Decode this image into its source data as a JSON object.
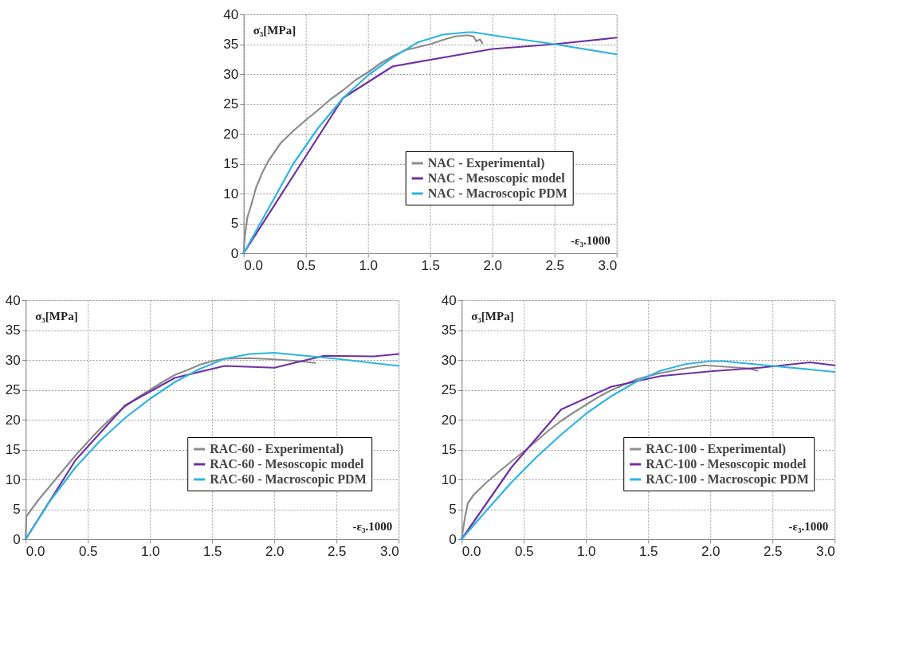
{
  "chart_data": [
    {
      "type": "line",
      "xlabel": "-ε₃.1000",
      "ylabel": "σ₃[MPa]",
      "xlim": [
        0,
        3
      ],
      "ylim": [
        0,
        40
      ],
      "xticks": [
        {
          "value": 0,
          "label": "0.0"
        },
        0.5,
        {
          "value": 1,
          "label": "1.0"
        },
        1.5,
        {
          "value": 2,
          "label": "2.0"
        },
        2.5,
        {
          "value": 3,
          "label": "3.0"
        }
      ],
      "yticks": [
        0,
        5,
        10,
        15,
        20,
        25,
        30,
        35,
        40
      ],
      "grid": true,
      "legend": "bottom right",
      "series": [
        {
          "name": "NAC - Experimental)",
          "color": "#8c8c8c",
          "x": [
            0,
            0.01,
            0.03,
            0.06,
            0.1,
            0.15,
            0.2,
            0.25,
            0.3,
            0.4,
            0.5,
            0.6,
            0.7,
            0.8,
            0.9,
            1.0,
            1.1,
            1.2,
            1.3,
            1.4,
            1.5,
            1.6,
            1.7,
            1.8,
            1.85,
            1.87,
            1.9,
            1.92
          ],
          "values": [
            0,
            3,
            6,
            8,
            11,
            13.5,
            15.5,
            17,
            18.5,
            20.5,
            22.3,
            24,
            25.8,
            27.3,
            29,
            30.3,
            31.8,
            33,
            34,
            34.5,
            35,
            35.7,
            36.3,
            36.5,
            36.3,
            35.5,
            35.8,
            35.2
          ]
        },
        {
          "name": "NAC - Mesoscopic model",
          "color": "#7030a0",
          "x": [
            0,
            0.4,
            0.8,
            1.2,
            2.0,
            2.5,
            3.0
          ],
          "values": [
            0,
            13,
            26,
            31.3,
            34.2,
            35,
            36.1
          ]
        },
        {
          "name": "NAC - Macroscopic PDM",
          "color": "#2eb4e0",
          "x": [
            0,
            0.2,
            0.4,
            0.6,
            0.8,
            1.0,
            1.2,
            1.4,
            1.6,
            1.8,
            1.85,
            2.0,
            2.5,
            3.0
          ],
          "values": [
            0,
            7.5,
            15,
            21,
            26,
            29.8,
            32.8,
            35.3,
            36.6,
            37,
            37,
            36.5,
            35,
            33.3
          ]
        }
      ]
    },
    {
      "type": "line",
      "xlabel": "-ε₃.1000",
      "ylabel": "σ₃[MPa]",
      "xlim": [
        0,
        3
      ],
      "ylim": [
        0,
        40
      ],
      "xticks": [
        {
          "value": 0,
          "label": "0.0"
        },
        0.5,
        {
          "value": 1,
          "label": "1.0"
        },
        1.5,
        {
          "value": 2,
          "label": "2.0"
        },
        2.5,
        {
          "value": 3,
          "label": "3.0"
        }
      ],
      "yticks": [
        0,
        5,
        10,
        15,
        20,
        25,
        30,
        35,
        40
      ],
      "grid": true,
      "legend": "bottom right",
      "series": [
        {
          "name": "RAC-60 - Experimental)",
          "color": "#8c8c8c",
          "x": [
            0,
            0.005,
            0.1,
            0.2,
            0.3,
            0.4,
            0.5,
            0.6,
            0.7,
            0.8,
            0.9,
            1.0,
            1.1,
            1.2,
            1.3,
            1.4,
            1.5,
            1.6,
            1.8,
            2.0,
            2.2,
            2.33
          ],
          "values": [
            0,
            3.8,
            6.5,
            9,
            11.5,
            14,
            16.3,
            18.5,
            20.5,
            22.2,
            23.7,
            25,
            26.3,
            27.5,
            28.3,
            29.2,
            29.8,
            30.2,
            30.3,
            30.1,
            29.8,
            29.5
          ]
        },
        {
          "name": "RAC-60 - Mesoscopic model",
          "color": "#7030a0",
          "x": [
            0,
            0.4,
            0.8,
            1.2,
            1.6,
            2.0,
            2.4,
            2.8,
            3.0
          ],
          "values": [
            0,
            13.2,
            22.4,
            27,
            29,
            28.7,
            30.7,
            30.6,
            31
          ]
        },
        {
          "name": "RAC-60 - Macroscopic PDM",
          "color": "#2eb4e0",
          "x": [
            0,
            0.2,
            0.4,
            0.6,
            0.8,
            1.0,
            1.2,
            1.4,
            1.6,
            1.8,
            2.0,
            2.2,
            2.5,
            3.0
          ],
          "values": [
            0,
            6.5,
            12,
            16.5,
            20.3,
            23.5,
            26.3,
            28.5,
            30.2,
            31,
            31.2,
            30.8,
            30.2,
            29
          ]
        }
      ]
    },
    {
      "type": "line",
      "xlabel": "-ε₃.1000",
      "ylabel": "σ₃[MPa]",
      "xlim": [
        0,
        3
      ],
      "ylim": [
        0,
        40
      ],
      "xticks": [
        {
          "value": 0,
          "label": "0.0"
        },
        0.5,
        {
          "value": 1,
          "label": "1.0"
        },
        1.5,
        {
          "value": 2,
          "label": "2.0"
        },
        2.5,
        {
          "value": 3,
          "label": "3.0"
        }
      ],
      "yticks": [
        0,
        5,
        10,
        15,
        20,
        25,
        30,
        35,
        40
      ],
      "grid": true,
      "legend": "bottom right",
      "series": [
        {
          "name": "RAC-100 - Experimental)",
          "color": "#8c8c8c",
          "x": [
            0,
            0.01,
            0.03,
            0.05,
            0.1,
            0.2,
            0.3,
            0.4,
            0.5,
            0.6,
            0.7,
            0.8,
            0.9,
            1.0,
            1.1,
            1.2,
            1.3,
            1.4,
            1.5,
            1.6,
            1.8,
            1.95,
            2.1,
            2.3,
            2.38
          ],
          "values": [
            0,
            1.5,
            4,
            6,
            7.5,
            9.5,
            11.3,
            13,
            14.7,
            16.4,
            18.2,
            19.8,
            21.2,
            22.5,
            23.8,
            24.9,
            25.8,
            26.7,
            27.3,
            27.8,
            28.6,
            29.1,
            28.9,
            28.6,
            28.2
          ]
        },
        {
          "name": "RAC-100 - Mesoscopic model",
          "color": "#7030a0",
          "x": [
            0,
            0.4,
            0.8,
            1.2,
            1.6,
            2.0,
            2.4,
            2.8,
            3.0
          ],
          "values": [
            0,
            12,
            21.7,
            25.5,
            27.3,
            28.1,
            28.7,
            29.6,
            29.1
          ]
        },
        {
          "name": "RAC-100 - Macroscopic PDM",
          "color": "#2eb4e0",
          "x": [
            0,
            0.2,
            0.4,
            0.6,
            0.8,
            1.0,
            1.2,
            1.4,
            1.6,
            1.8,
            2.0,
            2.1,
            2.5,
            3.0
          ],
          "values": [
            0,
            4.8,
            9.5,
            13.7,
            17.5,
            21,
            23.9,
            26.3,
            28.2,
            29.3,
            29.8,
            29.8,
            29,
            28
          ]
        }
      ]
    }
  ]
}
